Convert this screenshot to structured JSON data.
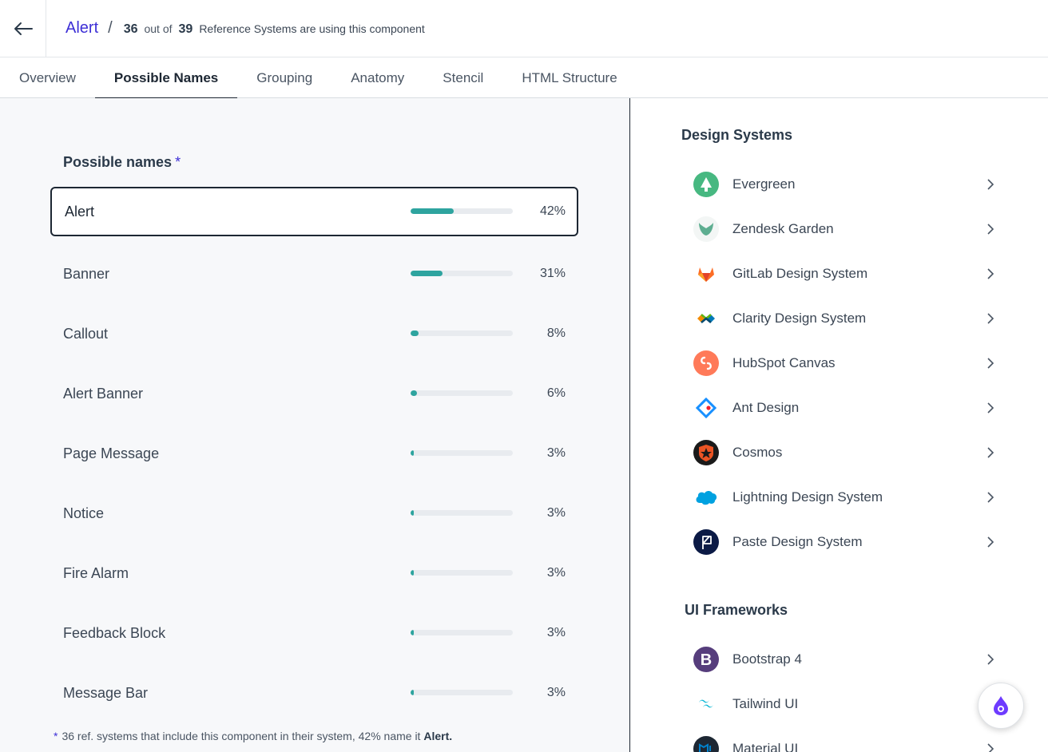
{
  "header": {
    "component": "Alert",
    "separator": "/",
    "count": "36",
    "out_of_label": "out of",
    "total": "39",
    "description": "Reference Systems are using this component"
  },
  "tabs": [
    {
      "label": "Overview",
      "active": false
    },
    {
      "label": "Possible Names",
      "active": true
    },
    {
      "label": "Grouping",
      "active": false
    },
    {
      "label": "Anatomy",
      "active": false
    },
    {
      "label": "Stencil",
      "active": false
    },
    {
      "label": "HTML Structure",
      "active": false
    }
  ],
  "possible_names": {
    "title": "Possible names",
    "star": "*",
    "items": [
      {
        "label": "Alert",
        "pct_label": "42%",
        "value": 42
      },
      {
        "label": "Banner",
        "pct_label": "31%",
        "value": 31
      },
      {
        "label": "Callout",
        "pct_label": "8%",
        "value": 8
      },
      {
        "label": "Alert Banner",
        "pct_label": "6%",
        "value": 6
      },
      {
        "label": "Page Message",
        "pct_label": "3%",
        "value": 3
      },
      {
        "label": "Notice",
        "pct_label": "3%",
        "value": 3
      },
      {
        "label": "Fire Alarm",
        "pct_label": "3%",
        "value": 3
      },
      {
        "label": "Feedback Block",
        "pct_label": "3%",
        "value": 3
      },
      {
        "label": "Message Bar",
        "pct_label": "3%",
        "value": 3
      }
    ],
    "footnote_star": "*",
    "footnote_text": "36 ref. systems that include this component in their system, 42% name it",
    "footnote_bold": "Alert."
  },
  "design_systems": {
    "title": "Design Systems",
    "items": [
      {
        "name": "Evergreen",
        "icon": "evergreen-logo-icon"
      },
      {
        "name": "Zendesk Garden",
        "icon": "zendesk-garden-logo-icon"
      },
      {
        "name": "GitLab Design System",
        "icon": "gitlab-logo-icon"
      },
      {
        "name": "Clarity Design System",
        "icon": "clarity-logo-icon"
      },
      {
        "name": "HubSpot Canvas",
        "icon": "hubspot-logo-icon"
      },
      {
        "name": "Ant Design",
        "icon": "ant-design-logo-icon"
      },
      {
        "name": "Cosmos",
        "icon": "cosmos-logo-icon"
      },
      {
        "name": "Lightning Design System",
        "icon": "salesforce-logo-icon"
      },
      {
        "name": "Paste Design System",
        "icon": "paste-logo-icon"
      }
    ]
  },
  "ui_frameworks": {
    "title": "UI Frameworks",
    "items": [
      {
        "name": "Bootstrap 4",
        "icon": "bootstrap-logo-icon"
      },
      {
        "name": "Tailwind UI",
        "icon": "tailwind-logo-icon"
      },
      {
        "name": "Material UI",
        "icon": "material-ui-logo-icon"
      }
    ]
  },
  "colors": {
    "accent": "#3d2fd6",
    "bar_fill": "#2ea49f",
    "bar_track": "#e8ebef"
  }
}
